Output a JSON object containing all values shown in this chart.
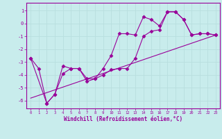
{
  "xlabel": "Windchill (Refroidissement éolien,°C)",
  "bg_color": "#c8ecec",
  "line_color": "#990099",
  "grid_color": "#b8dede",
  "xlim": [
    -0.5,
    23.5
  ],
  "ylim": [
    -6.6,
    1.6
  ],
  "yticks": [
    1,
    0,
    -1,
    -2,
    -3,
    -4,
    -5,
    -6
  ],
  "xticks": [
    0,
    1,
    2,
    3,
    4,
    5,
    6,
    7,
    8,
    9,
    10,
    11,
    12,
    13,
    14,
    15,
    16,
    17,
    18,
    19,
    20,
    21,
    22,
    23
  ],
  "line1_x": [
    0,
    1,
    2,
    3,
    4,
    5,
    6,
    7,
    8,
    9,
    10,
    11,
    12,
    13,
    14,
    15,
    16,
    17,
    18,
    19,
    20,
    21,
    22,
    23
  ],
  "line1_y": [
    -2.7,
    -3.5,
    -6.2,
    -5.5,
    -3.3,
    -3.5,
    -3.5,
    -4.3,
    -4.3,
    -3.5,
    -2.5,
    -0.8,
    -0.8,
    -0.9,
    0.5,
    0.3,
    -0.2,
    0.9,
    0.9,
    0.3,
    -0.9,
    -0.8,
    -0.8,
    -0.9
  ],
  "line2_x": [
    0,
    2,
    3,
    4,
    5,
    6,
    7,
    8,
    9,
    10,
    11,
    12,
    13,
    14,
    15,
    16,
    17,
    18,
    19,
    20,
    21,
    22,
    23
  ],
  "line2_y": [
    -2.7,
    -6.2,
    -5.5,
    -3.9,
    -3.5,
    -3.5,
    -4.5,
    -4.3,
    -4.0,
    -3.6,
    -3.5,
    -3.5,
    -2.7,
    -1.0,
    -0.6,
    -0.5,
    0.9,
    0.9,
    0.3,
    -0.9,
    -0.8,
    -0.8,
    -0.9
  ],
  "line3_x": [
    0,
    23
  ],
  "line3_y": [
    -5.8,
    -0.9
  ]
}
